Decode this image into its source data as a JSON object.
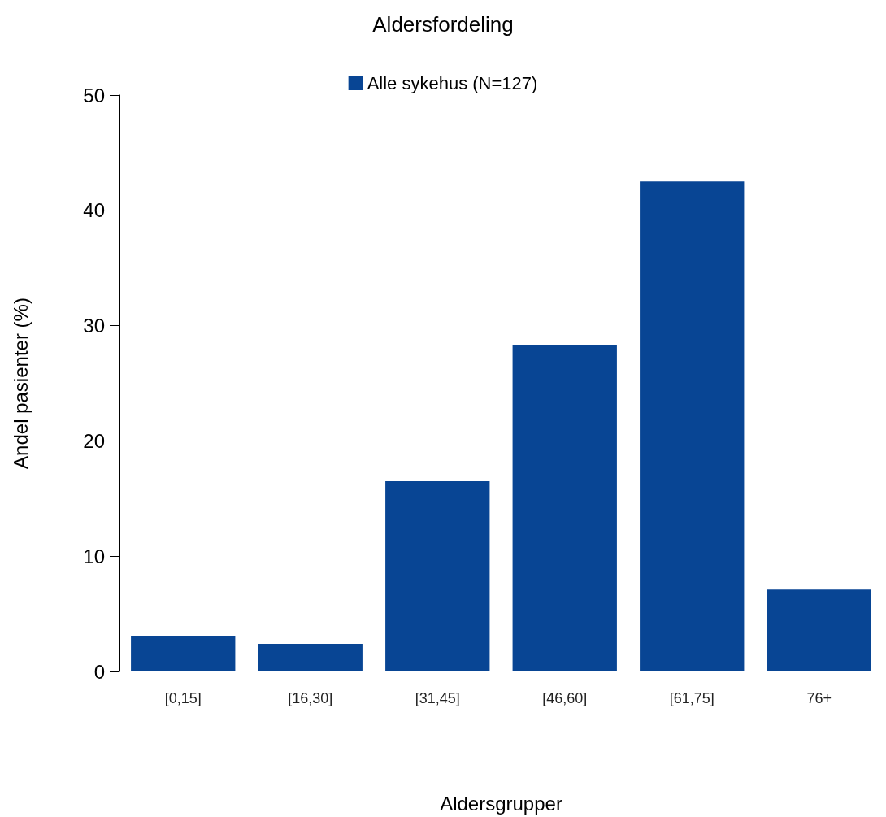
{
  "chart_data": {
    "type": "bar",
    "title": "Aldersfordeling",
    "xlabel": "Aldersgrupper",
    "ylabel": "Andel pasienter (%)",
    "categories": [
      "[0,15]",
      "[16,30]",
      "[31,45]",
      "[46,60]",
      "[61,75]",
      "76+"
    ],
    "series": [
      {
        "name": "Alle sykehus (N=127)",
        "color": "#084594",
        "values": [
          3.1,
          2.4,
          16.5,
          28.3,
          42.5,
          7.1
        ]
      }
    ],
    "ylim": [
      0,
      50
    ],
    "yticks": [
      0,
      10,
      20,
      30,
      40,
      50
    ],
    "grid": false,
    "legend": "top"
  }
}
